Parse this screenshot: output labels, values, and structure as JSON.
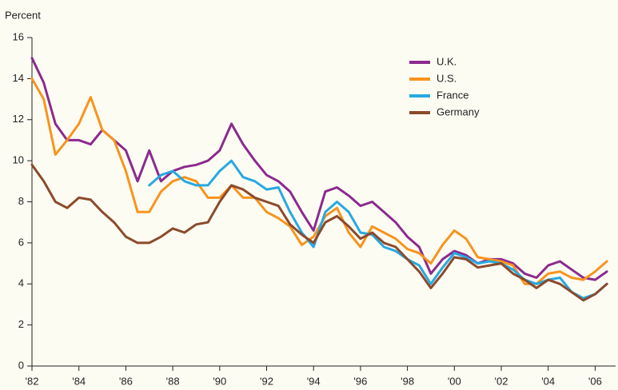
{
  "chart_data": {
    "type": "line",
    "y_label": "Percent",
    "x": [
      1982,
      1982.5,
      1983,
      1983.5,
      1984,
      1984.5,
      1985,
      1985.5,
      1986,
      1986.5,
      1987,
      1987.5,
      1988,
      1988.5,
      1989,
      1989.5,
      1990,
      1990.5,
      1991,
      1991.5,
      1992,
      1992.5,
      1993,
      1993.5,
      1994,
      1994.5,
      1995,
      1995.5,
      1996,
      1996.5,
      1997,
      1997.5,
      1998,
      1998.5,
      1999,
      1999.5,
      2000,
      2000.5,
      2001,
      2001.5,
      2002,
      2002.5,
      2003,
      2003.5,
      2004,
      2004.5,
      2005,
      2005.5,
      2006,
      2006.5
    ],
    "series": [
      {
        "name": "U.K.",
        "color": "#8b2a8f",
        "values": [
          15.0,
          13.8,
          11.8,
          11.0,
          11.0,
          10.8,
          11.5,
          11.0,
          10.5,
          9.0,
          10.5,
          9.0,
          9.5,
          9.7,
          9.8,
          10.0,
          10.5,
          11.8,
          10.8,
          10.0,
          9.3,
          9.0,
          8.5,
          7.5,
          6.6,
          8.5,
          8.7,
          8.3,
          7.8,
          8.0,
          7.5,
          7.0,
          6.3,
          5.8,
          4.5,
          5.2,
          5.6,
          5.4,
          5.0,
          5.2,
          5.2,
          5.0,
          4.5,
          4.3,
          4.9,
          5.1,
          4.7,
          4.3,
          4.2,
          4.6
        ]
      },
      {
        "name": "U.S.",
        "color": "#f7941d",
        "values": [
          14.0,
          13.0,
          10.3,
          11.0,
          11.8,
          13.1,
          11.5,
          11.0,
          9.5,
          7.5,
          7.5,
          8.5,
          9.0,
          9.2,
          9.0,
          8.2,
          8.2,
          8.8,
          8.2,
          8.2,
          7.5,
          7.2,
          6.8,
          5.9,
          6.3,
          7.3,
          7.7,
          6.5,
          5.8,
          6.8,
          6.5,
          6.2,
          5.7,
          5.5,
          5.0,
          5.9,
          6.6,
          6.2,
          5.3,
          5.2,
          5.1,
          4.9,
          4.0,
          4.0,
          4.5,
          4.6,
          4.3,
          4.2,
          4.6,
          5.1
        ]
      },
      {
        "name": "France",
        "color": "#27a9e1",
        "values": [
          null,
          null,
          null,
          null,
          null,
          null,
          null,
          null,
          null,
          null,
          8.8,
          9.3,
          9.5,
          9.0,
          8.8,
          8.8,
          9.5,
          10.0,
          9.2,
          9.0,
          8.6,
          8.7,
          7.5,
          6.5,
          5.8,
          7.5,
          8.0,
          7.5,
          6.5,
          6.4,
          5.8,
          5.6,
          5.2,
          4.9,
          4.0,
          4.8,
          5.5,
          5.3,
          5.0,
          5.1,
          5.0,
          4.7,
          4.2,
          4.0,
          4.2,
          4.3,
          3.6,
          3.3,
          3.5,
          4.0
        ]
      },
      {
        "name": "Germany",
        "color": "#8b4a2b",
        "values": [
          9.8,
          9.0,
          8.0,
          7.7,
          8.2,
          8.1,
          7.5,
          7.0,
          6.3,
          6.0,
          6.0,
          6.3,
          6.7,
          6.5,
          6.9,
          7.0,
          8.0,
          8.8,
          8.6,
          8.2,
          8.0,
          7.8,
          6.9,
          6.4,
          6.0,
          7.0,
          7.3,
          6.8,
          6.2,
          6.5,
          6.0,
          5.8,
          5.2,
          4.6,
          3.8,
          4.5,
          5.3,
          5.2,
          4.8,
          4.9,
          5.0,
          4.5,
          4.2,
          3.8,
          4.2,
          4.0,
          3.6,
          3.2,
          3.5,
          4.0
        ]
      }
    ],
    "xlim": [
      1982,
      2006.6
    ],
    "xticks": [
      {
        "value": 1982,
        "label": "'82"
      },
      {
        "value": 1984,
        "label": "'84"
      },
      {
        "value": 1986,
        "label": "'86"
      },
      {
        "value": 1988,
        "label": "'88"
      },
      {
        "value": 1990,
        "label": "'90"
      },
      {
        "value": 1992,
        "label": "'92"
      },
      {
        "value": 1994,
        "label": "'94"
      },
      {
        "value": 1996,
        "label": "'96"
      },
      {
        "value": 1998,
        "label": "'98"
      },
      {
        "value": 2000,
        "label": "'00"
      },
      {
        "value": 2002,
        "label": "'02"
      },
      {
        "value": 2004,
        "label": "'04"
      },
      {
        "value": 2006,
        "label": "'06"
      }
    ],
    "ylim": [
      0,
      16
    ],
    "yticks": [
      0,
      2,
      4,
      6,
      8,
      10,
      12,
      14,
      16
    ],
    "legend": "upper right"
  }
}
